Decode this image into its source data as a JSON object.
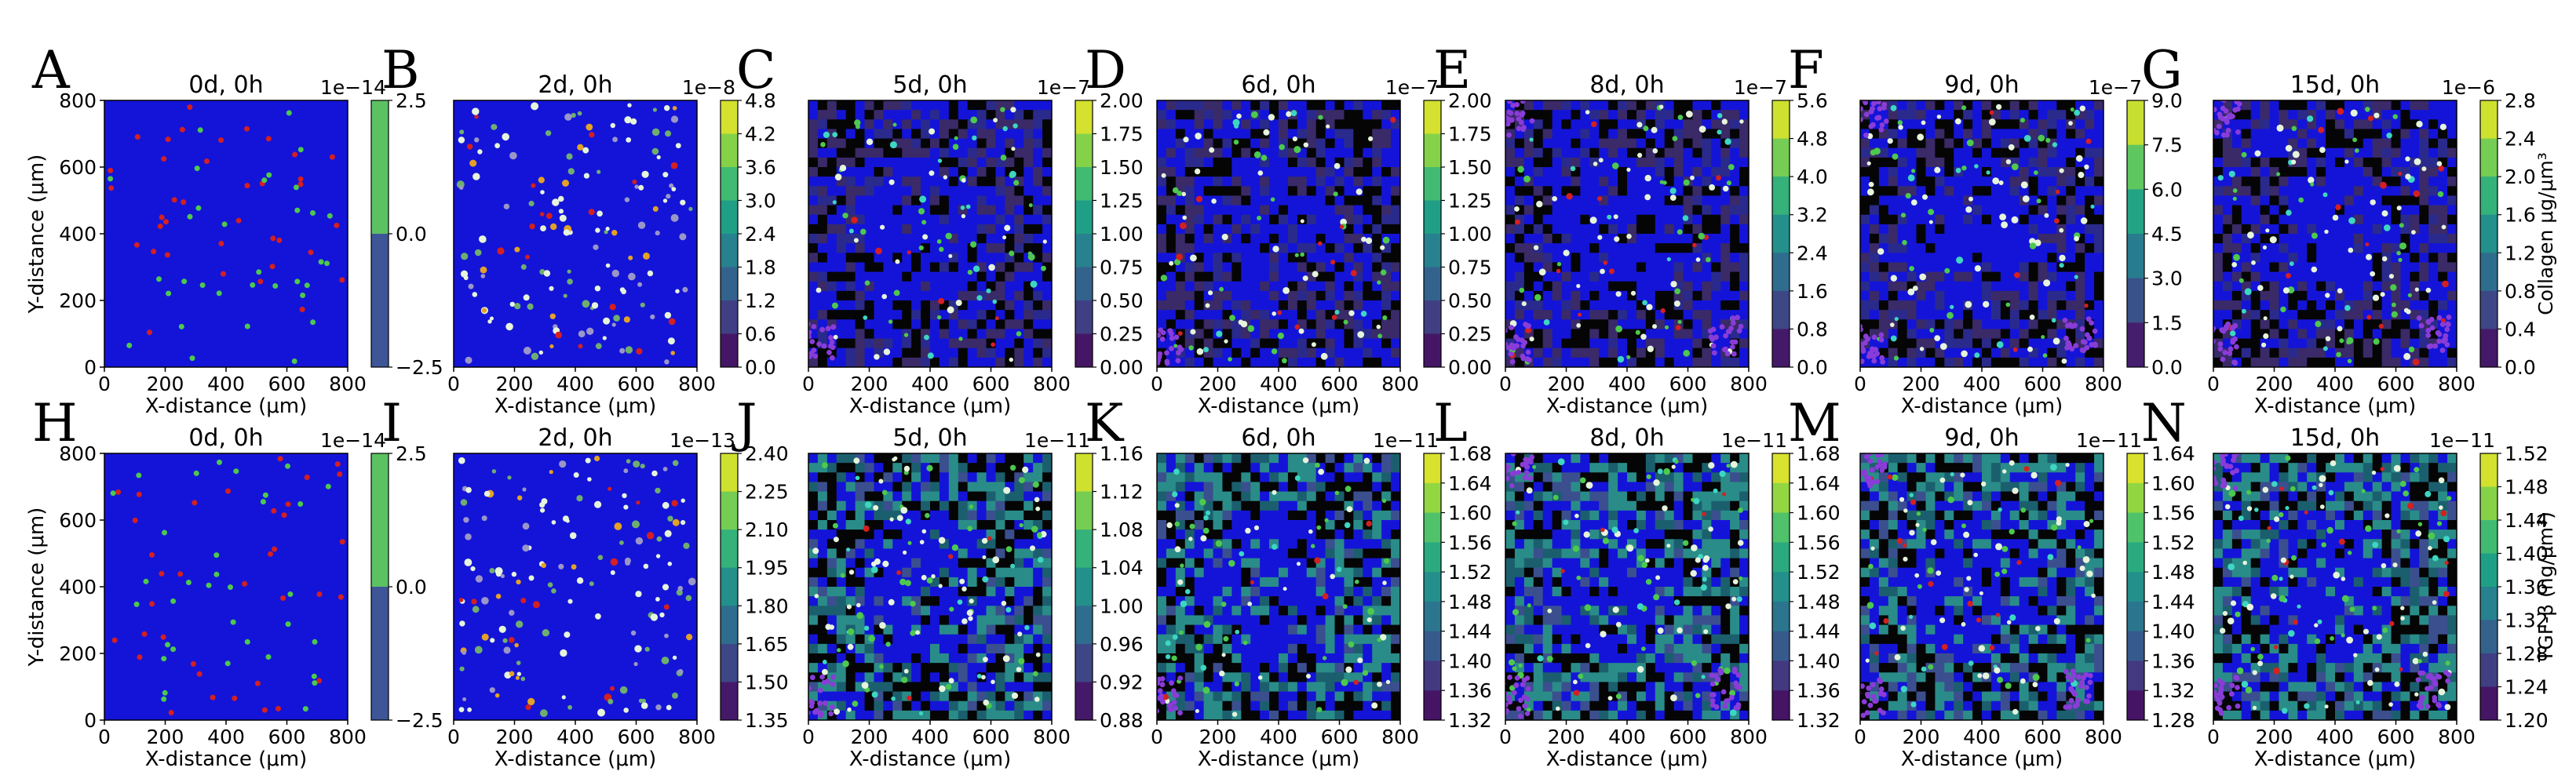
{
  "figure": {
    "rows": [
      {
        "quantity_label": "Collagen μg/μm³",
        "panels": [
          {
            "letter": "A",
            "title": "0d, 0h",
            "exponent": "1e−14",
            "cb_ticks": [
              "2.5",
              "0.0",
              "−2.5"
            ],
            "cb_colors": [
              "#3e5697",
              "#5cc163"
            ],
            "xlabel": "X-distance (μm)",
            "ylabel": "Y-distance (μm)",
            "xticks": [
              "0",
              "200",
              "400",
              "600",
              "800"
            ],
            "yticks": [
              "0",
              "200",
              "400",
              "600",
              "800"
            ],
            "style": "init"
          },
          {
            "letter": "B",
            "title": "2d, 0h",
            "exponent": "1e−8",
            "cb_ticks": [
              "4.8",
              "4.2",
              "3.6",
              "3.0",
              "2.4",
              "1.8",
              "1.2",
              "0.6",
              "0.0"
            ],
            "xlabel": "X-distance (μm)",
            "xticks": [
              "0",
              "200",
              "400",
              "600",
              "800"
            ],
            "style": "early"
          },
          {
            "letter": "C",
            "title": "5d, 0h",
            "exponent": "1e−7",
            "cb_ticks": [
              "2.00",
              "1.75",
              "1.50",
              "1.25",
              "1.00",
              "0.75",
              "0.50",
              "0.25",
              "0.00"
            ],
            "xlabel": "X-distance (μm)",
            "xticks": [
              "0",
              "200",
              "400",
              "600",
              "800"
            ],
            "style": "late_col"
          },
          {
            "letter": "D",
            "title": "6d, 0h",
            "exponent": "1e−7",
            "cb_ticks": [
              "2.00",
              "1.75",
              "1.50",
              "1.25",
              "1.00",
              "0.75",
              "0.50",
              "0.25",
              "0.00"
            ],
            "xlabel": "X-distance (μm)",
            "xticks": [
              "0",
              "200",
              "400",
              "600",
              "800"
            ],
            "style": "late_col"
          },
          {
            "letter": "E",
            "title": "8d, 0h",
            "exponent": "1e−7",
            "cb_ticks": [
              "5.6",
              "4.8",
              "4.0",
              "3.2",
              "2.4",
              "1.6",
              "0.8",
              "0.0"
            ],
            "xlabel": "X-distance (μm)",
            "xticks": [
              "0",
              "200",
              "400",
              "600",
              "800"
            ],
            "style": "late_col"
          },
          {
            "letter": "F",
            "title": "9d, 0h",
            "exponent": "1e−7",
            "cb_ticks": [
              "9.0",
              "7.5",
              "6.0",
              "4.5",
              "3.0",
              "1.5",
              "0.0"
            ],
            "xlabel": "X-distance (μm)",
            "xticks": [
              "0",
              "200",
              "400",
              "600",
              "800"
            ],
            "style": "late_col"
          },
          {
            "letter": "G",
            "title": "15d, 0h",
            "exponent": "1e−6",
            "cb_ticks": [
              "2.8",
              "2.4",
              "2.0",
              "1.6",
              "1.2",
              "0.8",
              "0.4",
              "0.0"
            ],
            "xlabel": "X-distance (μm)",
            "xticks": [
              "0",
              "200",
              "400",
              "600",
              "800"
            ],
            "style": "late_col"
          }
        ]
      },
      {
        "quantity_label": "TGF-β (ng/μm³)",
        "panels": [
          {
            "letter": "H",
            "title": "0d, 0h",
            "exponent": "1e−14",
            "cb_ticks": [
              "2.5",
              "0.0",
              "−2.5"
            ],
            "cb_colors": [
              "#3e5697",
              "#5cc163"
            ],
            "xlabel": "X-distance (μm)",
            "ylabel": "Y-distance (μm)",
            "xticks": [
              "0",
              "200",
              "400",
              "600",
              "800"
            ],
            "yticks": [
              "0",
              "200",
              "400",
              "600",
              "800"
            ],
            "style": "init"
          },
          {
            "letter": "I",
            "title": "2d, 0h",
            "exponent": "1e−13",
            "cb_ticks": [
              "2.40",
              "2.25",
              "2.10",
              "1.95",
              "1.80",
              "1.65",
              "1.50",
              "1.35"
            ],
            "xlabel": "X-distance (μm)",
            "xticks": [
              "0",
              "200",
              "400",
              "600",
              "800"
            ],
            "style": "early"
          },
          {
            "letter": "J",
            "title": "5d, 0h",
            "exponent": "1e−11",
            "cb_ticks": [
              "1.16",
              "1.12",
              "1.08",
              "1.04",
              "1.00",
              "0.96",
              "0.92",
              "0.88"
            ],
            "xlabel": "X-distance (μm)",
            "xticks": [
              "0",
              "200",
              "400",
              "600",
              "800"
            ],
            "style": "late_tgf"
          },
          {
            "letter": "K",
            "title": "6d, 0h",
            "exponent": "1e−11",
            "cb_ticks": [
              "1.68",
              "1.64",
              "1.60",
              "1.56",
              "1.52",
              "1.48",
              "1.44",
              "1.40",
              "1.36",
              "1.32"
            ],
            "xlabel": "X-distance (μm)",
            "xticks": [
              "0",
              "200",
              "400",
              "600",
              "800"
            ],
            "style": "late_tgf"
          },
          {
            "letter": "L",
            "title": "8d, 0h",
            "exponent": "1e−11",
            "cb_ticks": [
              "1.68",
              "1.64",
              "1.60",
              "1.56",
              "1.52",
              "1.48",
              "1.44",
              "1.40",
              "1.36",
              "1.32"
            ],
            "xlabel": "X-distance (μm)",
            "xticks": [
              "0",
              "200",
              "400",
              "600",
              "800"
            ],
            "style": "late_tgf"
          },
          {
            "letter": "M",
            "title": "9d, 0h",
            "exponent": "1e−11",
            "cb_ticks": [
              "1.64",
              "1.60",
              "1.56",
              "1.52",
              "1.48",
              "1.44",
              "1.40",
              "1.36",
              "1.32",
              "1.28"
            ],
            "xlabel": "X-distance (μm)",
            "xticks": [
              "0",
              "200",
              "400",
              "600",
              "800"
            ],
            "style": "late_tgf"
          },
          {
            "letter": "N",
            "title": "15d, 0h",
            "exponent": "1e−11",
            "cb_ticks": [
              "1.52",
              "1.48",
              "1.44",
              "1.40",
              "1.36",
              "1.32",
              "1.28",
              "1.24",
              "1.20"
            ],
            "xlabel": "X-distance (μm)",
            "xticks": [
              "0",
              "200",
              "400",
              "600",
              "800"
            ],
            "style": "late_tgf"
          }
        ]
      }
    ]
  },
  "chart_data": [
    {
      "type": "heatmap",
      "panel": "A",
      "title": "0d, 0h",
      "xlabel": "X-distance (μm)",
      "ylabel": "Y-distance (μm)",
      "xlim": [
        0,
        800
      ],
      "ylim": [
        0,
        800
      ],
      "colorbar": {
        "scale": "1e−14",
        "ticks": [
          2.5,
          0.0,
          -2.5
        ]
      }
    },
    {
      "type": "heatmap",
      "panel": "B",
      "title": "2d, 0h",
      "xlabel": "X-distance (μm)",
      "xlim": [
        0,
        800
      ],
      "ylim": [
        0,
        800
      ],
      "colorbar": {
        "scale": "1e−8",
        "ticks": [
          4.8,
          4.2,
          3.6,
          3.0,
          2.4,
          1.8,
          1.2,
          0.6,
          0.0
        ]
      }
    },
    {
      "type": "heatmap",
      "panel": "C",
      "title": "5d, 0h",
      "xlabel": "X-distance (μm)",
      "xlim": [
        0,
        800
      ],
      "ylim": [
        0,
        800
      ],
      "colorbar": {
        "scale": "1e−7",
        "ticks": [
          2.0,
          1.75,
          1.5,
          1.25,
          1.0,
          0.75,
          0.5,
          0.25,
          0.0
        ]
      }
    },
    {
      "type": "heatmap",
      "panel": "D",
      "title": "6d, 0h",
      "xlabel": "X-distance (μm)",
      "xlim": [
        0,
        800
      ],
      "ylim": [
        0,
        800
      ],
      "colorbar": {
        "scale": "1e−7",
        "ticks": [
          2.0,
          1.75,
          1.5,
          1.25,
          1.0,
          0.75,
          0.5,
          0.25,
          0.0
        ]
      }
    },
    {
      "type": "heatmap",
      "panel": "E",
      "title": "8d, 0h",
      "xlabel": "X-distance (μm)",
      "xlim": [
        0,
        800
      ],
      "ylim": [
        0,
        800
      ],
      "colorbar": {
        "scale": "1e−7",
        "ticks": [
          5.6,
          4.8,
          4.0,
          3.2,
          2.4,
          1.6,
          0.8,
          0.0
        ]
      }
    },
    {
      "type": "heatmap",
      "panel": "F",
      "title": "9d, 0h",
      "xlabel": "X-distance (μm)",
      "xlim": [
        0,
        800
      ],
      "ylim": [
        0,
        800
      ],
      "colorbar": {
        "scale": "1e−7",
        "ticks": [
          9.0,
          7.5,
          6.0,
          4.5,
          3.0,
          1.5,
          0.0
        ]
      }
    },
    {
      "type": "heatmap",
      "panel": "G",
      "title": "15d, 0h",
      "xlabel": "X-distance (μm)",
      "xlim": [
        0,
        800
      ],
      "ylim": [
        0,
        800
      ],
      "colorbar": {
        "scale": "1e−6",
        "label": "Collagen μg/μm³",
        "ticks": [
          2.8,
          2.4,
          2.0,
          1.6,
          1.2,
          0.8,
          0.4,
          0.0
        ]
      }
    },
    {
      "type": "heatmap",
      "panel": "H",
      "title": "0d, 0h",
      "xlabel": "X-distance (μm)",
      "ylabel": "Y-distance (μm)",
      "xlim": [
        0,
        800
      ],
      "ylim": [
        0,
        800
      ],
      "colorbar": {
        "scale": "1e−14",
        "ticks": [
          2.5,
          0.0,
          -2.5
        ]
      }
    },
    {
      "type": "heatmap",
      "panel": "I",
      "title": "2d, 0h",
      "xlabel": "X-distance (μm)",
      "xlim": [
        0,
        800
      ],
      "ylim": [
        0,
        800
      ],
      "colorbar": {
        "scale": "1e−13",
        "ticks": [
          2.4,
          2.25,
          2.1,
          1.95,
          1.8,
          1.65,
          1.5,
          1.35
        ]
      }
    },
    {
      "type": "heatmap",
      "panel": "J",
      "title": "5d, 0h",
      "xlabel": "X-distance (μm)",
      "xlim": [
        0,
        800
      ],
      "ylim": [
        0,
        800
      ],
      "colorbar": {
        "scale": "1e−11",
        "ticks": [
          1.16,
          1.12,
          1.08,
          1.04,
          1.0,
          0.96,
          0.92,
          0.88
        ]
      }
    },
    {
      "type": "heatmap",
      "panel": "K",
      "title": "6d, 0h",
      "xlabel": "X-distance (μm)",
      "xlim": [
        0,
        800
      ],
      "ylim": [
        0,
        800
      ],
      "colorbar": {
        "scale": "1e−11",
        "ticks": [
          1.68,
          1.64,
          1.6,
          1.56,
          1.52,
          1.48,
          1.44,
          1.4,
          1.36,
          1.32
        ]
      }
    },
    {
      "type": "heatmap",
      "panel": "L",
      "title": "8d, 0h",
      "xlabel": "X-distance (μm)",
      "xlim": [
        0,
        800
      ],
      "ylim": [
        0,
        800
      ],
      "colorbar": {
        "scale": "1e−11",
        "ticks": [
          1.68,
          1.64,
          1.6,
          1.56,
          1.52,
          1.48,
          1.44,
          1.4,
          1.36,
          1.32
        ]
      }
    },
    {
      "type": "heatmap",
      "panel": "M",
      "title": "9d, 0h",
      "xlabel": "X-distance (μm)",
      "xlim": [
        0,
        800
      ],
      "ylim": [
        0,
        800
      ],
      "colorbar": {
        "scale": "1e−11",
        "ticks": [
          1.64,
          1.6,
          1.56,
          1.52,
          1.48,
          1.44,
          1.4,
          1.36,
          1.32,
          1.28
        ]
      }
    },
    {
      "type": "heatmap",
      "panel": "N",
      "title": "15d, 0h",
      "xlabel": "X-distance (μm)",
      "xlim": [
        0,
        800
      ],
      "ylim": [
        0,
        800
      ],
      "colorbar": {
        "scale": "1e−11",
        "label": "TGF-β (ng/μm³)",
        "ticks": [
          1.52,
          1.48,
          1.44,
          1.4,
          1.36,
          1.32,
          1.28,
          1.24,
          1.2
        ]
      }
    }
  ],
  "colors": {
    "domain_blue": "#1414d8",
    "dark_purple": "#3a2a68",
    "black": "#050505",
    "teal": "#2a8c88",
    "cell_green": "#4dc94d",
    "cell_white": "#e6f4dc",
    "cell_red": "#d42020",
    "cell_violet": "#8a3cd8",
    "viridis": [
      "#440154",
      "#46327e",
      "#365c8d",
      "#277f8e",
      "#1fa187",
      "#4ac16d",
      "#a0da39",
      "#fde725"
    ]
  }
}
